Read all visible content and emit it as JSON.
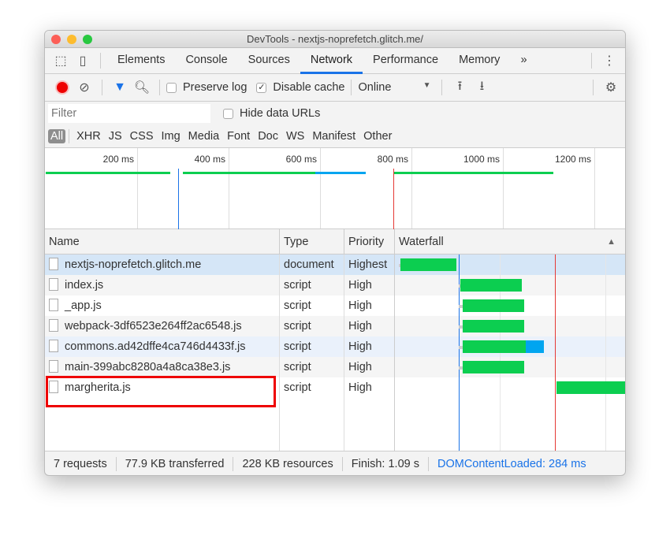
{
  "window": {
    "title": "DevTools - nextjs-noprefetch.glitch.me/"
  },
  "tabs": [
    {
      "label": "Elements"
    },
    {
      "label": "Console"
    },
    {
      "label": "Sources"
    },
    {
      "label": "Network",
      "active": true
    },
    {
      "label": "Performance"
    },
    {
      "label": "Memory"
    }
  ],
  "tabs_more": "»",
  "toolbar": {
    "preserve_log": "Preserve log",
    "preserve_log_checked": false,
    "disable_cache": "Disable cache",
    "disable_cache_checked": true,
    "throttling": "Online"
  },
  "filter": {
    "placeholder": "Filter",
    "hide_data_urls": "Hide data URLs"
  },
  "types": [
    "All",
    "XHR",
    "JS",
    "CSS",
    "Img",
    "Media",
    "Font",
    "Doc",
    "WS",
    "Manifest",
    "Other"
  ],
  "overview": {
    "ticks": [
      "200 ms",
      "400 ms",
      "600 ms",
      "800 ms",
      "1000 ms",
      "1200 ms"
    ]
  },
  "columns": {
    "name": "Name",
    "type": "Type",
    "priority": "Priority",
    "waterfall": "Waterfall"
  },
  "requests": [
    {
      "name": "nextjs-noprefetch.glitch.me",
      "type": "document",
      "priority": "Highest",
      "selected": true,
      "wait_ms": [
        0,
        8
      ],
      "download_ms": [
        8,
        272
      ]
    },
    {
      "name": "index.js",
      "type": "script",
      "priority": "High",
      "wait_ms": [
        285,
        291
      ],
      "download_ms": [
        291,
        582
      ]
    },
    {
      "name": "_app.js",
      "type": "script",
      "priority": "High",
      "wait_ms": [
        285,
        302
      ],
      "download_ms": [
        302,
        593
      ]
    },
    {
      "name": "webpack-3df6523e264ff2ac6548.js",
      "type": "script",
      "priority": "High",
      "wait_ms": [
        285,
        302
      ],
      "download_ms": [
        302,
        593
      ]
    },
    {
      "name": "commons.ad42dffe4ca746d4433f.js",
      "type": "script",
      "priority": "High",
      "wait_ms": [
        285,
        302
      ],
      "download_ms": [
        302,
        601
      ],
      "extra_ms": [
        601,
        687
      ]
    },
    {
      "name": "main-399abc8280a4a8ca38e3.js",
      "type": "script",
      "priority": "High",
      "wait_ms": [
        285,
        302
      ],
      "download_ms": [
        302,
        593
      ]
    },
    {
      "name": "margherita.js",
      "type": "script",
      "priority": "High",
      "wait_ms": [
        746,
        746
      ],
      "download_ms": [
        746,
        1090
      ],
      "highlighted": true
    }
  ],
  "footer": {
    "requests": "7 requests",
    "transferred": "77.9 KB transferred",
    "resources": "228 KB resources",
    "finish": "Finish: 1.09 s",
    "dcl": "DOMContentLoaded: 284 ms"
  },
  "markers": {
    "dcl_ms": 284,
    "load_ms": 740
  },
  "colors": {
    "accent": "#1a73e8",
    "download": "#0cce50",
    "waiting": "#00a5f0",
    "dcl": "#1a73e8",
    "load": "#e53935",
    "record": "#ee0000",
    "highlight": "#ee0000"
  }
}
